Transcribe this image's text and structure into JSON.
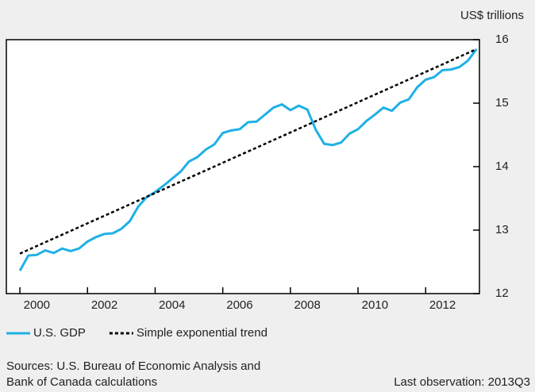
{
  "chart_data": {
    "type": "line",
    "y_axis_label": "US$ trillions",
    "series": [
      {
        "name": "U.S. GDP",
        "color": "#1fb0e6",
        "style": "solid",
        "x": [
          2000,
          2000.25,
          2000.5,
          2000.75,
          2001,
          2001.25,
          2001.5,
          2001.75,
          2002,
          2002.25,
          2002.5,
          2002.75,
          2003,
          2003.25,
          2003.5,
          2003.75,
          2004,
          2004.25,
          2004.5,
          2004.75,
          2005,
          2005.25,
          2005.5,
          2005.75,
          2006,
          2006.25,
          2006.5,
          2006.75,
          2007,
          2007.25,
          2007.5,
          2007.75,
          2008,
          2008.25,
          2008.5,
          2008.75,
          2009,
          2009.25,
          2009.5,
          2009.75,
          2010,
          2010.25,
          2010.5,
          2010.75,
          2011,
          2011.25,
          2011.5,
          2011.75,
          2012,
          2012.25,
          2012.5,
          2012.75,
          2013,
          2013.25,
          2013.5
        ],
        "values": [
          12.36,
          12.6,
          12.61,
          12.68,
          12.64,
          12.71,
          12.67,
          12.71,
          12.82,
          12.89,
          12.94,
          12.95,
          13.02,
          13.14,
          13.37,
          13.52,
          13.6,
          13.7,
          13.81,
          13.92,
          14.08,
          14.15,
          14.27,
          14.35,
          14.53,
          14.57,
          14.59,
          14.7,
          14.71,
          14.82,
          14.93,
          14.98,
          14.89,
          14.96,
          14.9,
          14.58,
          14.36,
          14.34,
          14.38,
          14.52,
          14.59,
          14.72,
          14.82,
          14.93,
          14.88,
          15.01,
          15.06,
          15.25,
          15.37,
          15.41,
          15.52,
          15.53,
          15.57,
          15.67,
          15.85
        ]
      },
      {
        "name": "Simple exponential trend",
        "color": "#000000",
        "style": "dashed",
        "x": [
          2000,
          2013.5
        ],
        "values": [
          12.63,
          15.85
        ]
      }
    ],
    "xlim": [
      1999.6,
      2013.59
    ],
    "xticks": [
      2000,
      2002,
      2004,
      2006,
      2008,
      2010,
      2012
    ],
    "ylim": [
      12,
      16
    ],
    "yticks": [
      12,
      13,
      14,
      15,
      16
    ],
    "y_axis_side": "right",
    "legend": "bottom-left",
    "source": [
      "Sources: U.S. Bureau of Economic Analysis and",
      "Bank of Canada calculations"
    ],
    "last_observation": "Last observation: 2013Q3"
  }
}
